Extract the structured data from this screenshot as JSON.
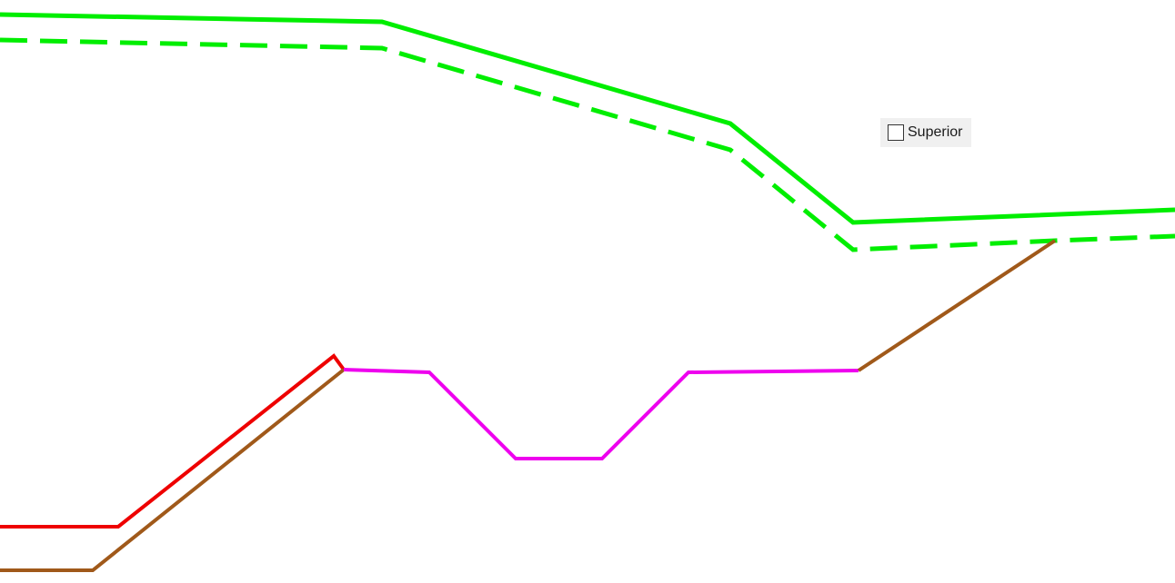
{
  "colors": {
    "background": "#ffffff",
    "surface_solid": "#00ee00",
    "surface_dashed": "#00ee00",
    "design_left": "#ee0000",
    "ground_existing": "#a0591a",
    "channel": "#ee00ee",
    "checkbox_bg": "#f0f0f0"
  },
  "controls": {
    "superior_checkbox": {
      "label": "Superior",
      "checked": false
    }
  }
}
